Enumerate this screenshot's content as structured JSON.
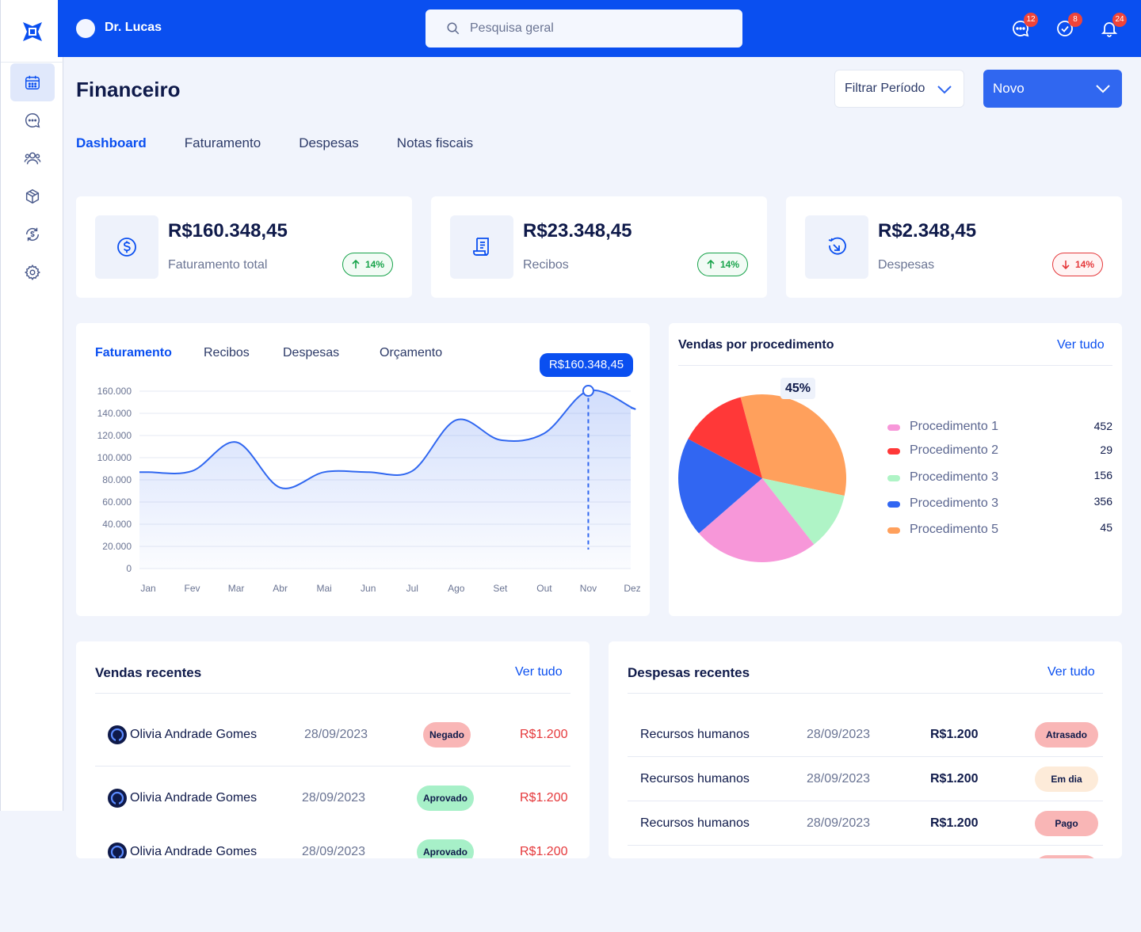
{
  "header": {
    "username": "Dr. Lucas",
    "search_placeholder": "Pesquisa geral",
    "badges": {
      "messages": "12",
      "tasks": "8",
      "notifications": "24"
    }
  },
  "sidebar": {
    "items": [
      {
        "icon": "calendar-icon",
        "active": true
      },
      {
        "icon": "chat-icon"
      },
      {
        "icon": "users-icon"
      },
      {
        "icon": "box-icon"
      },
      {
        "icon": "finance-refresh-icon"
      },
      {
        "icon": "gear-icon"
      }
    ]
  },
  "page": {
    "title": "Financeiro",
    "filter_label": "Filtrar Período",
    "new_label": "Novo",
    "tabs": [
      "Dashboard",
      "Faturamento",
      "Despesas",
      "Notas fiscais"
    ]
  },
  "stats": [
    {
      "value": "R$160.348,45",
      "label": "Faturamento total",
      "trend": "14%",
      "direction": "up",
      "icon": "dollar-icon"
    },
    {
      "value": "R$23.348,45",
      "label": "Recibos",
      "trend": "14%",
      "direction": "up",
      "icon": "receipt-icon"
    },
    {
      "value": "R$2.348,45",
      "label": "Despesas",
      "trend": "14%",
      "direction": "down",
      "icon": "expense-icon"
    }
  ],
  "revenue_chart": {
    "tabs": [
      "Faturamento",
      "Recibos",
      "Despesas",
      "Orçamento"
    ],
    "tooltip": "R$160.348,45"
  },
  "procedures": {
    "title": "Vendas por procedimento",
    "see_all": "Ver tudo",
    "highlight": "45%"
  },
  "chart_data": [
    {
      "type": "area",
      "x": [
        "Jan",
        "Fev",
        "Mar",
        "Abr",
        "Mai",
        "Jun",
        "Jul",
        "Ago",
        "Set",
        "Out",
        "Nov",
        "Dez"
      ],
      "y_ticks": [
        "0",
        "20.000",
        "40.000",
        "60.000",
        "80.000",
        "100.000",
        "120.000",
        "140.000",
        "160.000"
      ],
      "ylim": [
        0,
        160000
      ],
      "series": [
        {
          "values": [
            87000,
            88000,
            114000,
            73000,
            87000,
            87000,
            88000,
            134000,
            116000,
            122000,
            160348,
            145000
          ]
        }
      ],
      "highlight_index": 10,
      "color": "#3067F0"
    },
    {
      "type": "pie",
      "slices": [
        {
          "name": "Procedimento 1",
          "value": 452,
          "color": "#F797D9"
        },
        {
          "name": "Procedimento 2",
          "value": 29,
          "color": "#FF3838"
        },
        {
          "name": "Procedimento 3",
          "value": 156,
          "color": "#AFF4C6"
        },
        {
          "name": "Procedimento 3",
          "value": 356,
          "color": "#3166F2"
        },
        {
          "name": "Procedimento 5",
          "value": 45,
          "color": "#FFA05C"
        }
      ],
      "slice_angles_deg": [
        {
          "name": "Procedimento 5",
          "start": -15,
          "end": 102,
          "color": "#FFA05C"
        },
        {
          "name": "Procedimento 3",
          "start": 102,
          "end": 142,
          "color": "#AFF4C6"
        },
        {
          "name": "Procedimento 1",
          "start": 142,
          "end": 229,
          "color": "#F797D9"
        },
        {
          "name": "Procedimento 3",
          "start": 229,
          "end": 298,
          "color": "#3166F2"
        },
        {
          "name": "Procedimento 2",
          "start": 298,
          "end": 345,
          "color": "#FF3838"
        }
      ]
    }
  ],
  "recent_sales": {
    "title": "Vendas recentes",
    "see_all": "Ver tudo",
    "rows": [
      {
        "name": "Olivia Andrade Gomes",
        "date": "28/09/2023",
        "status": "Negado",
        "amount": "R$1.200"
      },
      {
        "name": "Olivia Andrade Gomes",
        "date": "28/09/2023",
        "status": "Aprovado",
        "amount": "R$1.200"
      },
      {
        "name": "Olivia Andrade Gomes",
        "date": "28/09/2023",
        "status": "Aprovado",
        "amount": "R$1.200"
      }
    ]
  },
  "recent_expenses": {
    "title": "Despesas recentes",
    "see_all": "Ver tudo",
    "rows": [
      {
        "name": "Recursos humanos",
        "date": "28/09/2023",
        "amount": "R$1.200",
        "status": "Atrasado"
      },
      {
        "name": "Recursos humanos",
        "date": "28/09/2023",
        "amount": "R$1.200",
        "status": "Em dia"
      },
      {
        "name": "Recursos humanos",
        "date": "28/09/2023",
        "amount": "R$1.200",
        "status": "Pago"
      }
    ]
  }
}
